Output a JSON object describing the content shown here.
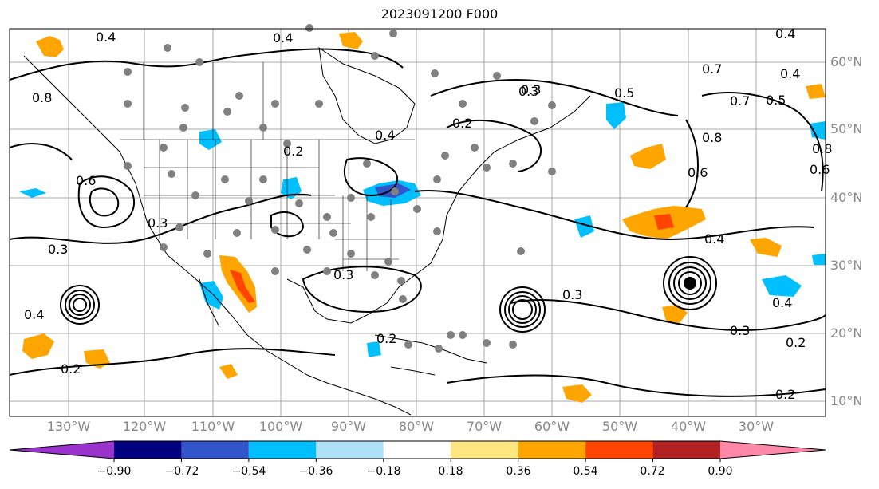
{
  "title": "2023091200 F000",
  "lat_labels": [
    "60°N",
    "50°N",
    "40°N",
    "30°N",
    "20°N",
    "10°N"
  ],
  "lon_labels": [
    "130°W",
    "120°W",
    "110°W",
    "100°W",
    "90°W",
    "80°W",
    "70°W",
    "60°W",
    "50°W",
    "40°W",
    "30°W"
  ],
  "colorbar": {
    "colors": [
      "#9933cc",
      "#000080",
      "#3355cc",
      "#00bfff",
      "#aee0f8",
      "#ffffff",
      "#ffe680",
      "#ffa500",
      "#ff4500",
      "#b22222",
      "#ff88aa"
    ],
    "labels": [
      "−0.90",
      "−0.72",
      "−0.54",
      "−0.36",
      "−0.18",
      "0.18",
      "0.36",
      "0.54",
      "0.72",
      "0.90"
    ]
  },
  "contour_labels": [
    "0.4",
    "0.4",
    "0.4",
    "0.4",
    "0.5",
    "0.2",
    "0.3",
    "0.4",
    "0.5",
    "0.7",
    "0.7",
    "0.8",
    "0.6",
    "0.4",
    "0.6",
    "0.8",
    "0.3",
    "0.3",
    "0.3",
    "0.4",
    "0.4",
    "0.3",
    "0.2",
    "0.2",
    "0.2",
    "0.3",
    "0.2",
    "0.2",
    "0.3",
    "0.6",
    "0.8"
  ]
}
